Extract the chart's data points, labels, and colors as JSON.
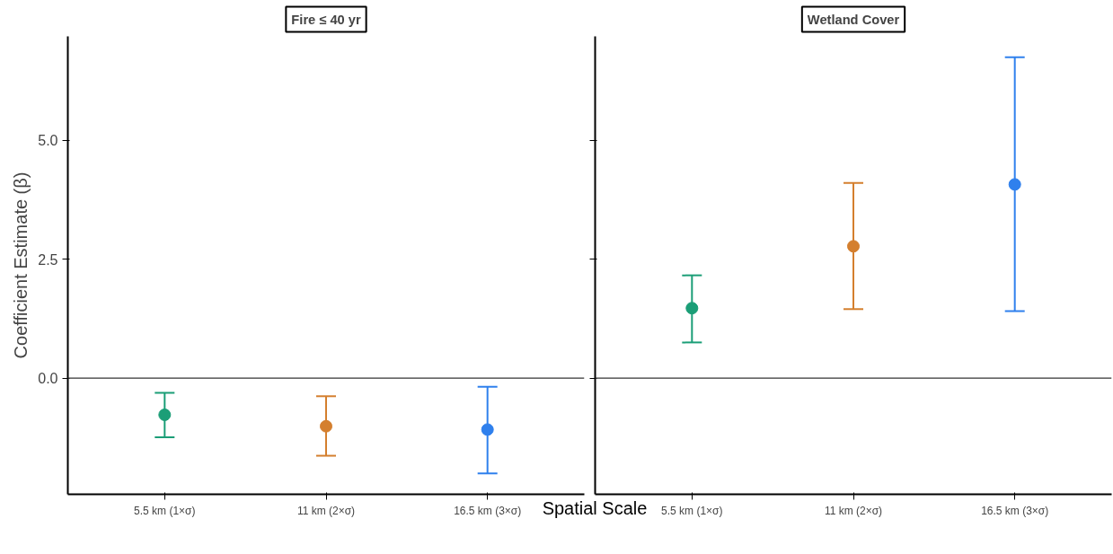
{
  "chart_data": [
    {
      "type": "scatter",
      "title": "Fire ≤ 40 yr",
      "ylabel": "Coefficient Estimate (β)",
      "xlabel": "Spatial Scale",
      "categories": [
        "5.5 km (1×σ)",
        "11 km (2×σ)",
        "16.5 km (3×σ)"
      ],
      "values": [
        -0.77,
        -1.01,
        -1.08
      ],
      "errors": [
        [
          -1.24,
          -0.31
        ],
        [
          -1.63,
          -0.38
        ],
        [
          -2.0,
          -0.18
        ]
      ],
      "colors": [
        "#1b9e77",
        "#d47f2e",
        "#2f80ed"
      ],
      "ylim": [
        -2.44,
        7.18
      ],
      "yticks": [
        {
          "value": 0,
          "label": "0.0"
        },
        2.5,
        {
          "value": 5,
          "label": "5.0"
        }
      ],
      "ref_lines": [
        {
          "axis": "y",
          "value": 0
        }
      ],
      "grid": false,
      "marker": "circle"
    },
    {
      "type": "scatter",
      "title": "Wetland Cover",
      "categories": [
        "5.5 km (1×σ)",
        "11 km (2×σ)",
        "16.5 km (3×σ)"
      ],
      "values": [
        1.47,
        2.77,
        4.07
      ],
      "errors": [
        [
          0.75,
          2.16
        ],
        [
          1.45,
          4.1
        ],
        [
          1.41,
          6.74
        ]
      ],
      "colors": [
        "#1b9e77",
        "#d47f2e",
        "#2f80ed"
      ],
      "ylim": [
        -2.44,
        7.18
      ],
      "yticks": [
        0,
        2.5,
        5
      ],
      "ref_lines": [
        {
          "axis": "y",
          "value": 0
        }
      ],
      "grid": false,
      "marker": "circle",
      "tick_labels": "x"
    }
  ]
}
